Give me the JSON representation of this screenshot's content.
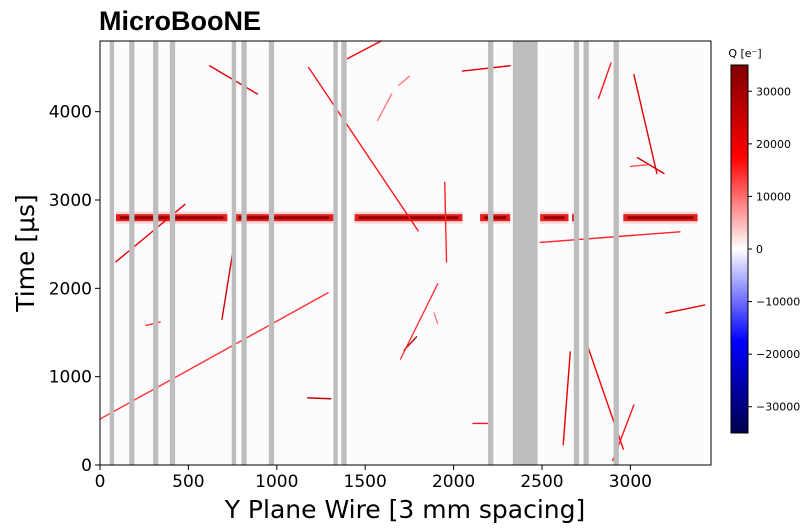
{
  "chart_data": {
    "type": "heatmap",
    "title": "MicroBooNE",
    "xlabel": "Y Plane Wire [3 mm spacing]",
    "ylabel": "Time [μs]",
    "xlim": [
      0,
      3456
    ],
    "ylim": [
      0,
      4800
    ],
    "x_ticks": [
      0,
      500,
      1000,
      1500,
      2000,
      2500,
      3000
    ],
    "y_ticks": [
      0,
      1000,
      2000,
      3000,
      4000
    ],
    "colorbar": {
      "label": "Q [e⁻]",
      "range": [
        -35000,
        35000
      ],
      "ticks": [
        30000,
        20000,
        10000,
        0,
        -10000,
        -20000,
        -30000
      ],
      "tick_labels": [
        "30000",
        "20000",
        "10000",
        "0",
        "−10000",
        "−20000",
        "−30000"
      ],
      "colormap": "seismic"
    },
    "dead_wire_bands": [
      {
        "x0": 55,
        "x1": 80
      },
      {
        "x0": 165,
        "x1": 195
      },
      {
        "x0": 300,
        "x1": 330
      },
      {
        "x0": 395,
        "x1": 425
      },
      {
        "x0": 745,
        "x1": 770
      },
      {
        "x0": 800,
        "x1": 830
      },
      {
        "x0": 955,
        "x1": 985
      },
      {
        "x0": 1320,
        "x1": 1345
      },
      {
        "x0": 1365,
        "x1": 1395
      },
      {
        "x0": 2195,
        "x1": 2225
      },
      {
        "x0": 2335,
        "x1": 2475
      },
      {
        "x0": 2680,
        "x1": 2710
      },
      {
        "x0": 2735,
        "x1": 2765
      },
      {
        "x0": 2905,
        "x1": 2935
      }
    ],
    "cosmic_band": {
      "t": 2800,
      "segments": [
        {
          "x0": 90,
          "x1": 720
        },
        {
          "x0": 760,
          "x1": 1320
        },
        {
          "x0": 1440,
          "x1": 2050
        },
        {
          "x0": 2150,
          "x1": 2320
        },
        {
          "x0": 2490,
          "x1": 2650
        },
        {
          "x0": 2670,
          "x1": 2700
        },
        {
          "x0": 2960,
          "x1": 3380
        }
      ]
    },
    "tracks": [
      {
        "x0": 0,
        "t0": 520,
        "x1": 1290,
        "t1": 1950,
        "q": 14000
      },
      {
        "x0": 620,
        "t0": 4520,
        "x1": 890,
        "t1": 4200,
        "q": 22000
      },
      {
        "x0": 1180,
        "t0": 4500,
        "x1": 1800,
        "t1": 2650,
        "q": 16000
      },
      {
        "x0": 1400,
        "t0": 4600,
        "x1": 1590,
        "t1": 4800,
        "q": 18000
      },
      {
        "x0": 1650,
        "t0": 4200,
        "x1": 1570,
        "t1": 3900,
        "q": 9000
      },
      {
        "x0": 1690,
        "t0": 4300,
        "x1": 1750,
        "t1": 4400,
        "q": 9000
      },
      {
        "x0": 90,
        "t0": 2300,
        "x1": 480,
        "t1": 2950,
        "q": 20000
      },
      {
        "x0": 690,
        "t0": 1650,
        "x1": 750,
        "t1": 2400,
        "q": 24000
      },
      {
        "x0": 260,
        "t0": 1580,
        "x1": 340,
        "t1": 1620,
        "q": 14000
      },
      {
        "x0": 1175,
        "t0": 760,
        "x1": 1305,
        "t1": 750,
        "q": 26000
      },
      {
        "x0": 1950,
        "t0": 3200,
        "x1": 1960,
        "t1": 2300,
        "q": 15000
      },
      {
        "x0": 1720,
        "t0": 1300,
        "x1": 1790,
        "t1": 1450,
        "q": 30000
      },
      {
        "x0": 1700,
        "t0": 1200,
        "x1": 1910,
        "t1": 2050,
        "q": 14000
      },
      {
        "x0": 2050,
        "t0": 4460,
        "x1": 2320,
        "t1": 4520,
        "q": 22000
      },
      {
        "x0": 2110,
        "t0": 470,
        "x1": 2210,
        "t1": 470,
        "q": 16000
      },
      {
        "x0": 2620,
        "t0": 230,
        "x1": 2660,
        "t1": 1280,
        "q": 20000
      },
      {
        "x0": 2740,
        "t0": 1450,
        "x1": 2960,
        "t1": 180,
        "q": 18000
      },
      {
        "x0": 2490,
        "t0": 2520,
        "x1": 3280,
        "t1": 2640,
        "q": 15000
      },
      {
        "x0": 3020,
        "t0": 4420,
        "x1": 3150,
        "t1": 3300,
        "q": 22000
      },
      {
        "x0": 3190,
        "t0": 3300,
        "x1": 3040,
        "t1": 3480,
        "q": 24000
      },
      {
        "x0": 2900,
        "t0": 50,
        "x1": 3020,
        "t1": 680,
        "q": 16000
      },
      {
        "x0": 3200,
        "t0": 1720,
        "x1": 3420,
        "t1": 1810,
        "q": 20000
      },
      {
        "x0": 2820,
        "t0": 4150,
        "x1": 2890,
        "t1": 4550,
        "q": 16000
      },
      {
        "x0": 3000,
        "t0": 3380,
        "x1": 3100,
        "t1": 3400,
        "q": 12000
      },
      {
        "x0": 1910,
        "t0": 1600,
        "x1": 1890,
        "t1": 1720,
        "q": 9000
      }
    ]
  }
}
